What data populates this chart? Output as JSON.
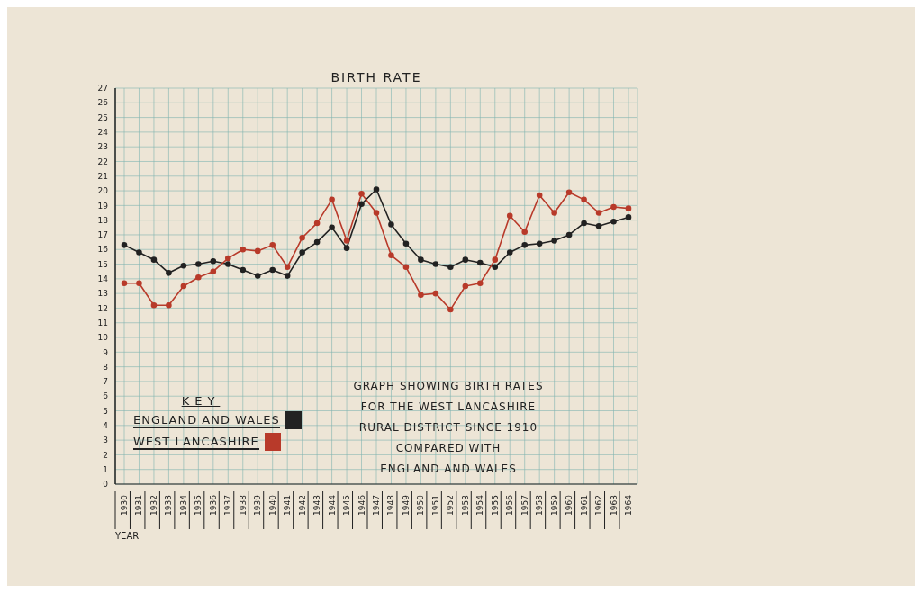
{
  "chart_data": {
    "type": "line",
    "title": "BIRTH RATE",
    "xlabel": "YEAR",
    "legend_title": "KEY",
    "categories": [
      "1930",
      "1931",
      "1932",
      "1933",
      "1934",
      "1935",
      "1936",
      "1937",
      "1938",
      "1939",
      "1940",
      "1941",
      "1942",
      "1943",
      "1944",
      "1945",
      "1946",
      "1947",
      "1948",
      "1949",
      "1950",
      "1951",
      "1952",
      "1953",
      "1954",
      "1955",
      "1956",
      "1957",
      "1958",
      "1959",
      "1960",
      "1961",
      "1962",
      "1963",
      "1964"
    ],
    "series": [
      {
        "name": "ENGLAND AND WALES",
        "color": "#222222",
        "values": [
          16.3,
          15.8,
          15.3,
          14.4,
          14.9,
          15.0,
          15.2,
          15.0,
          14.6,
          14.2,
          14.6,
          14.2,
          15.8,
          16.5,
          17.5,
          16.1,
          19.1,
          20.1,
          17.7,
          16.4,
          15.3,
          15.0,
          14.8,
          15.3,
          15.1,
          14.8,
          15.8,
          16.3,
          16.4,
          16.6,
          17.0,
          17.8,
          17.6,
          17.9,
          18.2
        ]
      },
      {
        "name": "WEST LANCASHIRE",
        "color": "#b83a2a",
        "values": [
          13.7,
          13.7,
          12.2,
          12.2,
          13.5,
          14.1,
          14.5,
          15.4,
          16.0,
          15.9,
          16.3,
          14.8,
          16.8,
          17.8,
          19.4,
          16.6,
          19.8,
          18.5,
          15.6,
          14.8,
          12.9,
          13.0,
          11.9,
          13.5,
          13.7,
          15.3,
          18.3,
          17.2,
          19.7,
          18.5,
          19.9,
          19.4,
          18.5,
          18.9,
          18.8
        ]
      }
    ],
    "ylim": [
      0,
      27
    ],
    "yticks": [
      0,
      1,
      2,
      3,
      4,
      5,
      6,
      7,
      8,
      9,
      10,
      11,
      12,
      13,
      14,
      15,
      16,
      17,
      18,
      19,
      20,
      21,
      22,
      23,
      24,
      25,
      26,
      27
    ],
    "grid": true,
    "legend": "bottom left",
    "marker": "circle",
    "line_style": "solid",
    "annotations": [
      "GRAPH SHOWING BIRTH RATES\nFOR THE WEST LANCASHIRE\nRURAL DISTRICT SINCE 1910\nCOMPARED WITH\nENGLAND AND WALES"
    ]
  }
}
